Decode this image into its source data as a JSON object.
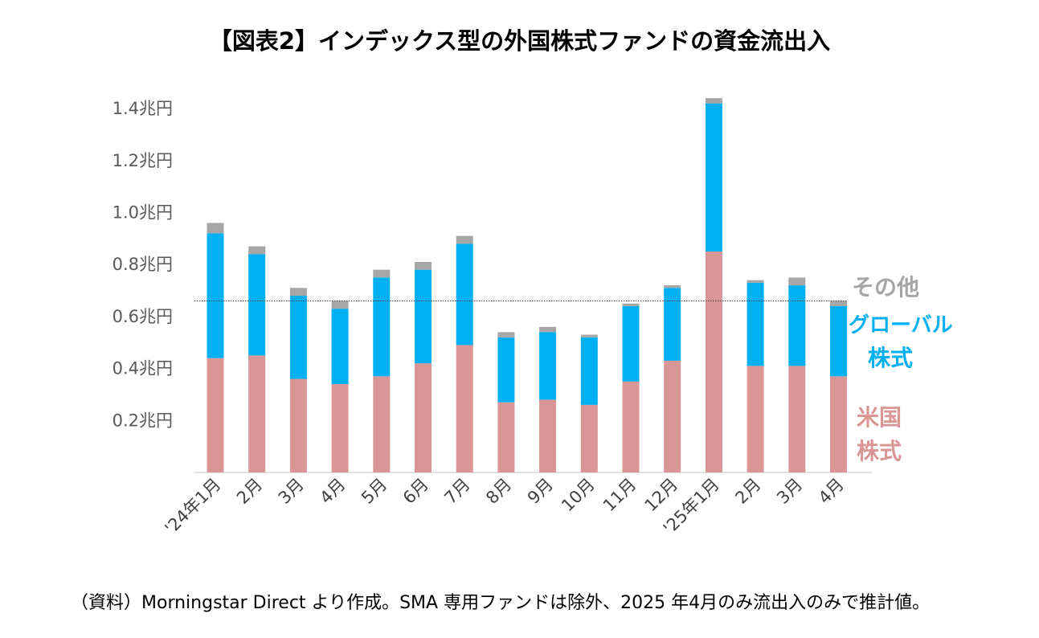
{
  "title": "【図表2】インデックス型の外国株式ファンドの資金流出入",
  "footer": "（資料）Morningstar Direct より作成。SMA 専用ファンドは除外、2025 年4月のみ流出入のみで推計値。",
  "legend": {
    "other": "その他",
    "global_1": "グローバル",
    "global_2": "株式",
    "us_1": "米国",
    "us_2": "株式"
  },
  "colors": {
    "us": "#d99694",
    "global": "#00b0f0",
    "other": "#a6a6a6",
    "reference_line": "#404040"
  },
  "chart_data": {
    "type": "bar",
    "stacked": true,
    "title": "【図表2】インデックス型の外国株式ファンドの資金流出入",
    "xlabel": "",
    "ylabel": "",
    "ylim": [
      0,
      1.4
    ],
    "yticks": [
      0.2,
      0.4,
      0.6,
      0.8,
      1.0,
      1.2,
      1.4
    ],
    "ytick_labels": [
      "0.2兆円",
      "0.4兆円",
      "0.6兆円",
      "0.8兆円",
      "1.0兆円",
      "1.2兆円",
      "1.4兆円"
    ],
    "categories": [
      "'24年1月",
      "2月",
      "3月",
      "4月",
      "5月",
      "6月",
      "7月",
      "8月",
      "9月",
      "10月",
      "11月",
      "12月",
      "'25年1月",
      "2月",
      "3月",
      "4月"
    ],
    "series": [
      {
        "name": "米国株式",
        "values": [
          0.44,
          0.45,
          0.36,
          0.34,
          0.37,
          0.42,
          0.49,
          0.27,
          0.28,
          0.26,
          0.35,
          0.43,
          0.85,
          0.41,
          0.41,
          0.37
        ]
      },
      {
        "name": "グローバル株式",
        "values": [
          0.48,
          0.39,
          0.32,
          0.29,
          0.38,
          0.36,
          0.39,
          0.25,
          0.26,
          0.26,
          0.29,
          0.28,
          0.57,
          0.32,
          0.31,
          0.27
        ]
      },
      {
        "name": "その他",
        "values": [
          0.04,
          0.03,
          0.03,
          0.03,
          0.03,
          0.03,
          0.03,
          0.02,
          0.02,
          0.01,
          0.01,
          0.01,
          0.02,
          0.01,
          0.03,
          0.02
        ]
      }
    ],
    "reference_line": 0.66,
    "grid": false,
    "legend_placement": "right (inline labels)"
  }
}
